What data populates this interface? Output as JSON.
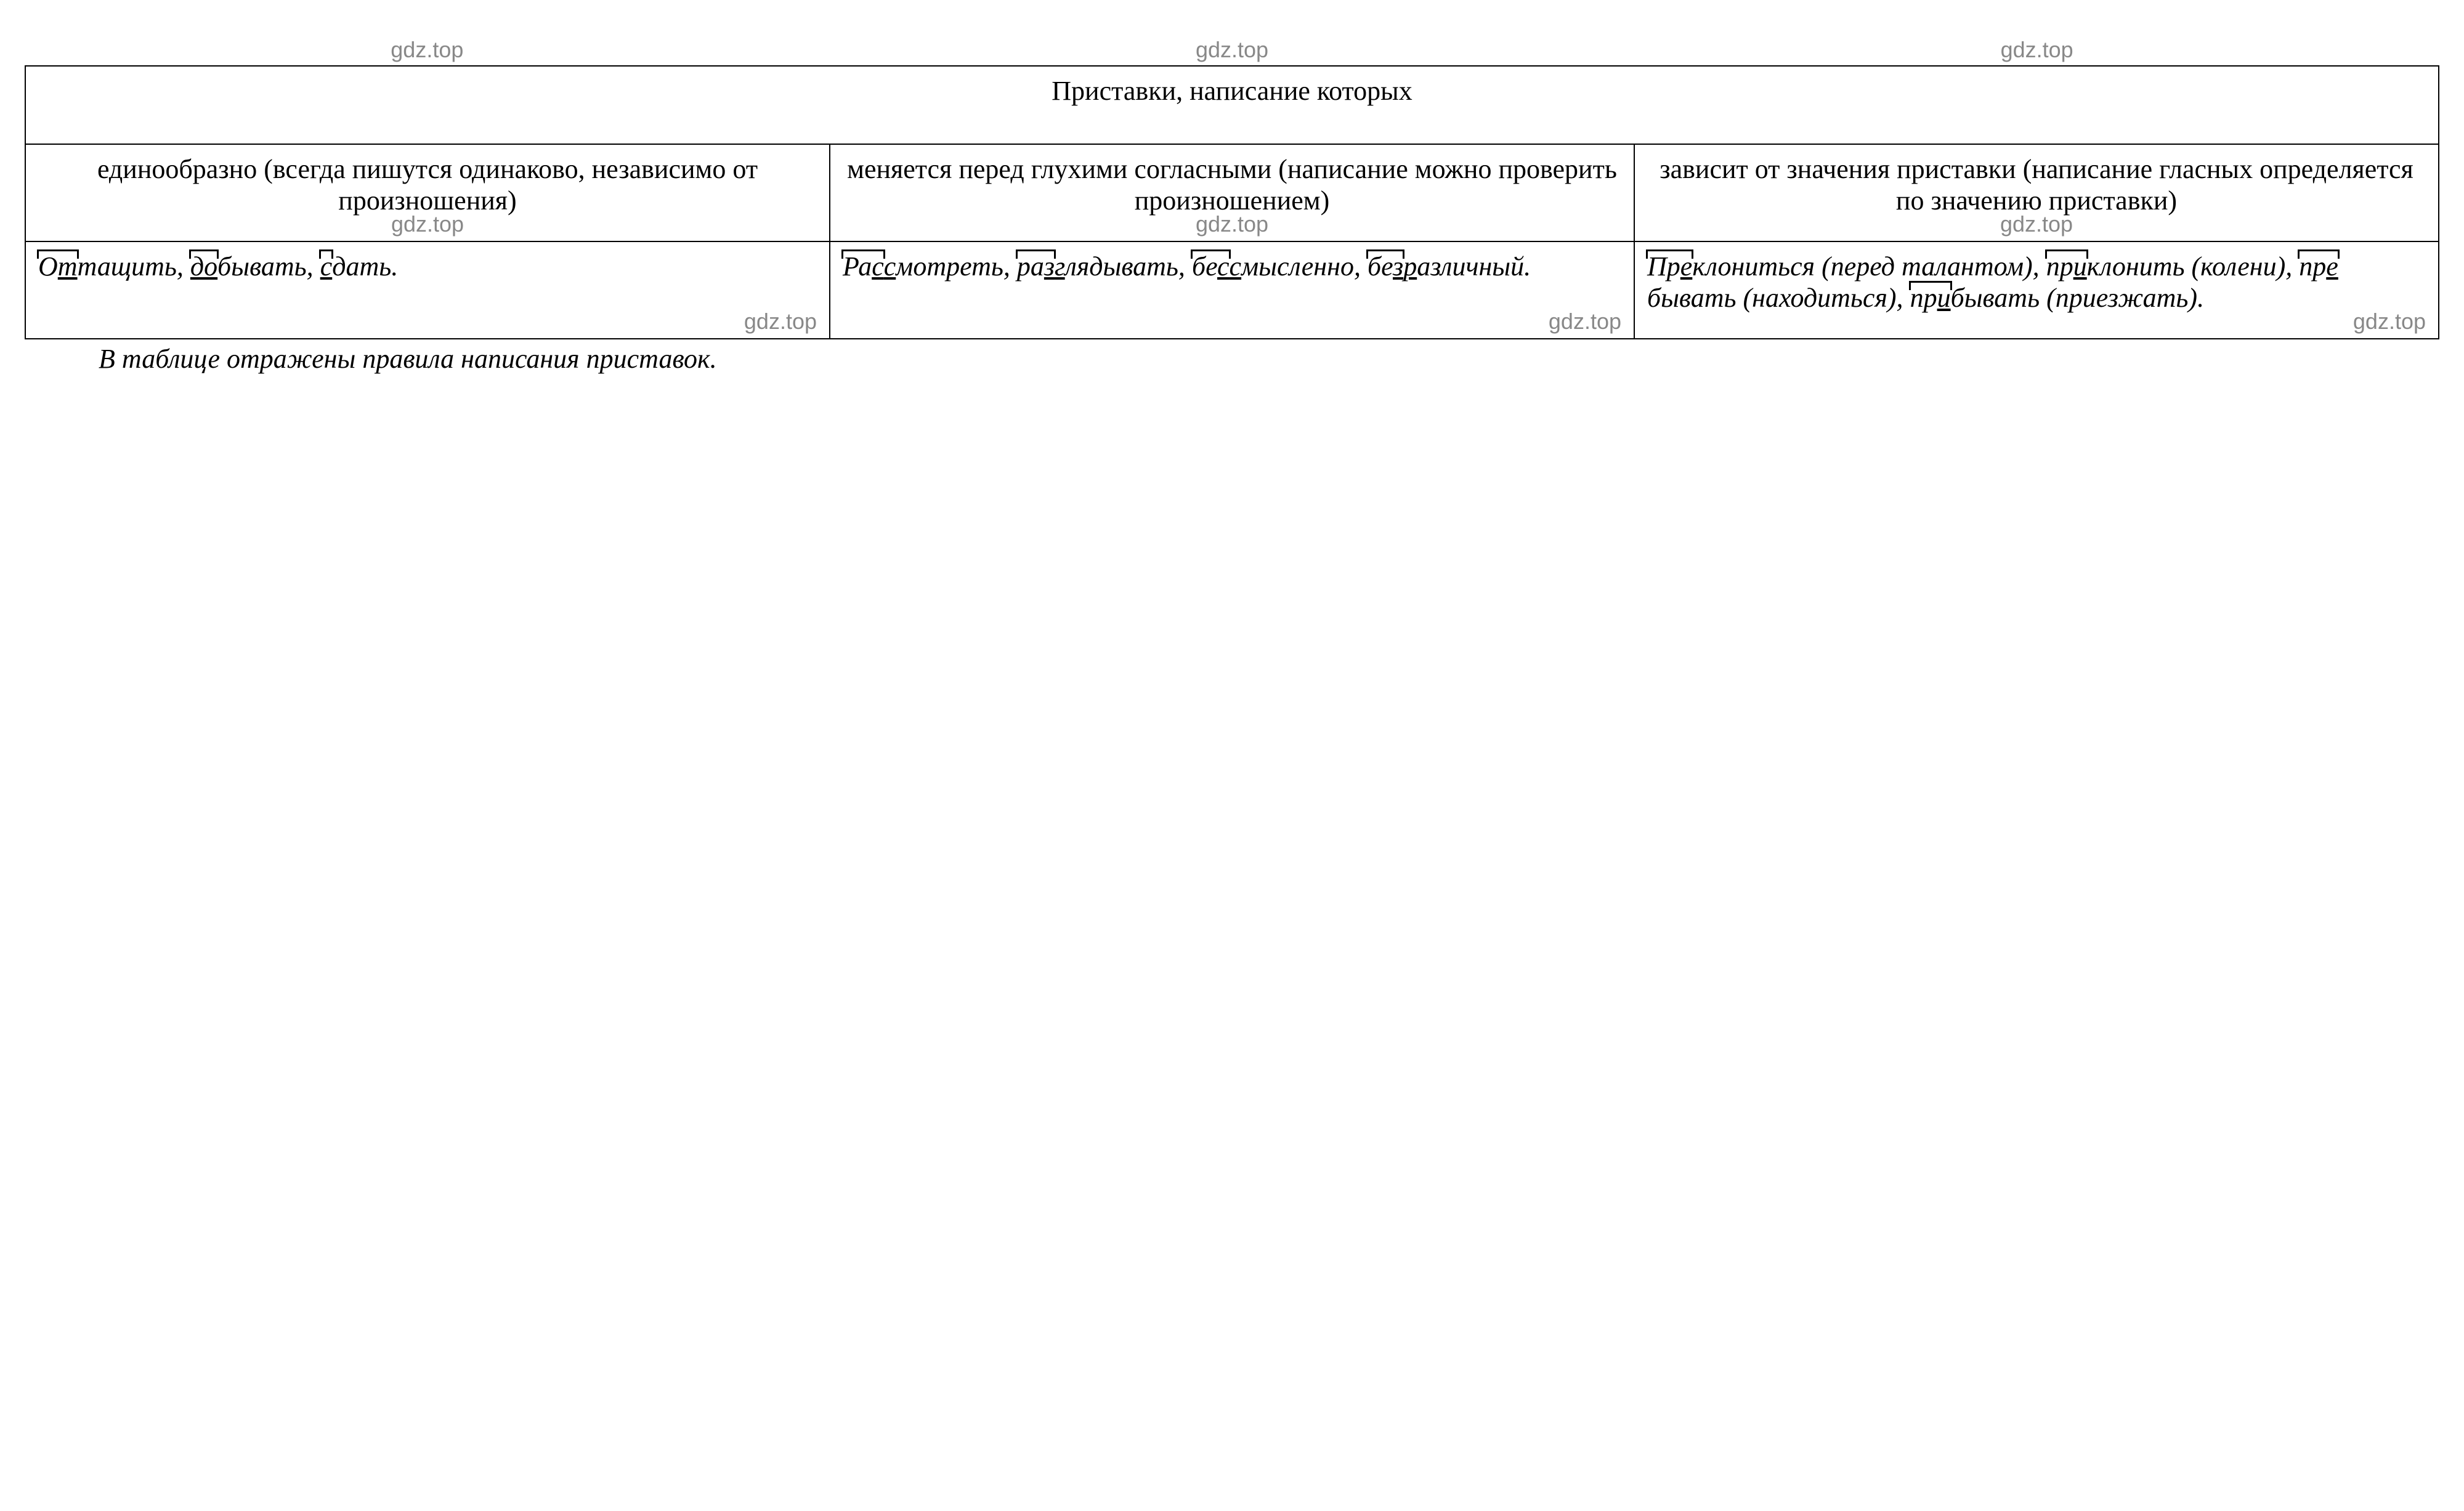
{
  "watermark": "gdz.top",
  "table": {
    "title": "Приставки, написание которых",
    "columns": [
      {
        "header": "единообразно (всегда пишутся одинаково, независимо от произношения)",
        "content_html": "<span class=\"prefix\">О<span class=\"u\">т</span></span>тащить, <span class=\"prefix\"><span class=\"u\">до</span></span>бывать, <span class=\"prefix\"><span class=\"u\">с</span></span>дать."
      },
      {
        "header": "меняется перед глухими согласными (написание можно проверить произношением)",
        "content_html": "<span class=\"prefix\">Ра<span class=\"u\">с</span></span><span class=\"u\">с</span>мотреть, <span class=\"prefix\">ра<span class=\"u\">з</span></span><span class=\"u\">г</span>лядывать, <span class=\"prefix\">бе<span class=\"u\">с</span></span><span class=\"u\">с</span>мысленно, <span class=\"prefix\">бе<span class=\"u\">з</span></span><span class=\"u\">р</span>азличный."
      },
      {
        "header": "зависит от значения приставки (написание гласных определяется по значению приставки)",
        "content_html": "<span class=\"prefix\">Пр<span class=\"u\">е</span></span>клониться (перед талантом), <span class=\"prefix\">пр<span class=\"u\">и</span></span>клонить (колени), <span class=\"prefix\">пр<span class=\"u\">е</span></span>бывать (находиться), <span class=\"prefix\">пр<span class=\"u\">и</span></span>бывать (приезжать)."
      }
    ]
  },
  "caption": "В таблице отражены правила написания приставок.",
  "styles": {
    "font_family": "Times New Roman",
    "font_size_body": 44,
    "font_size_watermark": 36,
    "border_color": "#000000",
    "background_color": "#ffffff",
    "watermark_color": "#888888",
    "text_color": "#000000"
  }
}
